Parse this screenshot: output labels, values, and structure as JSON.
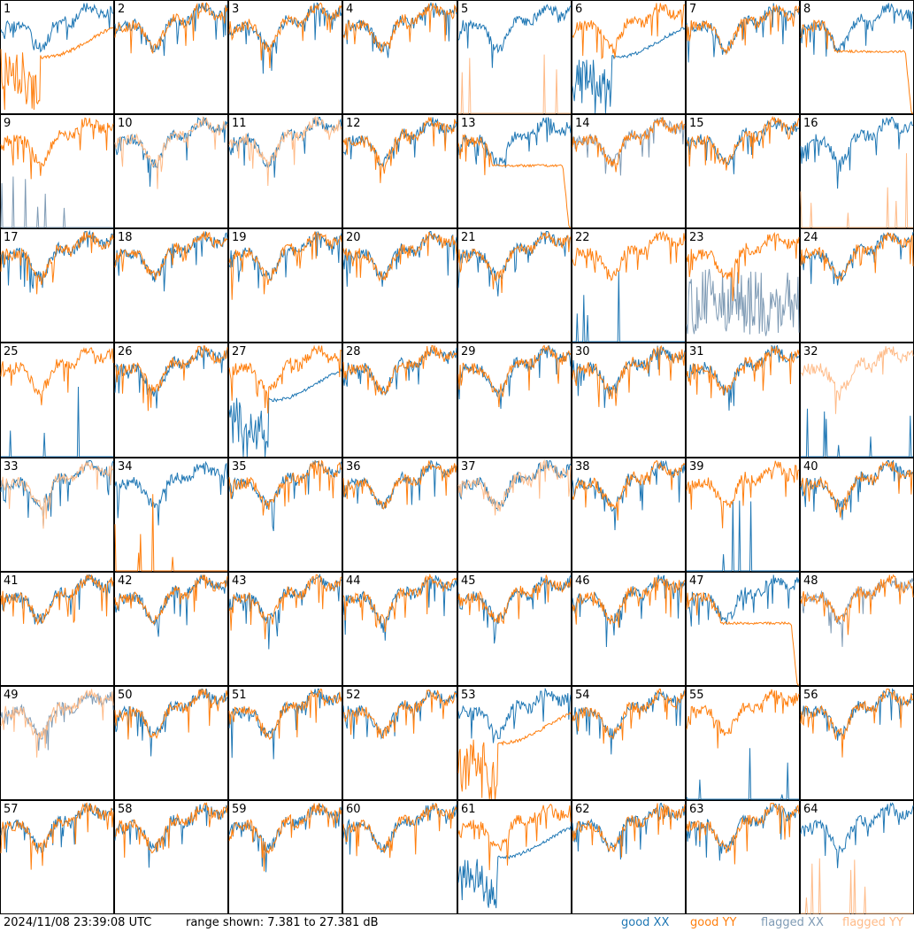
{
  "footer": {
    "timestamp": "2024/11/08 23:39:08 UTC",
    "range": "range shown: 7.381 to 27.381 dB",
    "legend": [
      {
        "prefix": "good ",
        "pol": "XX",
        "color": "#1f77b4"
      },
      {
        "prefix": "good ",
        "pol": "YY",
        "color": "#ff7f0e"
      },
      {
        "prefix": "flagged ",
        "pol": "XX",
        "color": "#7f9bb5"
      },
      {
        "prefix": "flagged ",
        "pol": "YY",
        "color": "#ffbb88"
      }
    ]
  },
  "chart_data": {
    "type": "line",
    "layout": "8x8 small multiples of antenna spectra",
    "ylim": [
      7.381,
      27.381
    ],
    "yunit": "dB",
    "series_colors": {
      "good_XX": "#1f77b4",
      "good_YY": "#ff7f0e",
      "flagged_XX": "#7f9bb5",
      "flagged_YY": "#ffbb88"
    },
    "panels": [
      {
        "id": "1",
        "XX": "good",
        "YY": "good",
        "xxShape": "normal",
        "yyShape": "dip"
      },
      {
        "id": "2",
        "XX": "good",
        "YY": "good",
        "xxShape": "normal",
        "yyShape": "normal"
      },
      {
        "id": "3",
        "XX": "good",
        "YY": "good",
        "xxShape": "normal",
        "yyShape": "normal"
      },
      {
        "id": "4",
        "XX": "good",
        "YY": "good",
        "xxShape": "normal",
        "yyShape": "normal"
      },
      {
        "id": "5",
        "XX": "good",
        "YY": "flagged",
        "xxShape": "normal",
        "yyShape": "spikes"
      },
      {
        "id": "6",
        "XX": "good",
        "YY": "good",
        "xxShape": "dip",
        "yyShape": "normal"
      },
      {
        "id": "7",
        "XX": "good",
        "YY": "good",
        "xxShape": "normal",
        "yyShape": "normal"
      },
      {
        "id": "8",
        "XX": "good",
        "YY": "good",
        "xxShape": "normal",
        "yyShape": "flat"
      },
      {
        "id": "9",
        "XX": "flagged",
        "YY": "good",
        "xxShape": "spikes",
        "yyShape": "normal"
      },
      {
        "id": "10",
        "XX": "good",
        "YY": "flagged",
        "xxShape": "normal",
        "yyShape": "normal"
      },
      {
        "id": "11",
        "XX": "good",
        "YY": "flagged",
        "xxShape": "normal",
        "yyShape": "normal"
      },
      {
        "id": "12",
        "XX": "good",
        "YY": "good",
        "xxShape": "normal",
        "yyShape": "normal"
      },
      {
        "id": "13",
        "XX": "good",
        "YY": "good",
        "xxShape": "normal",
        "yyShape": "flat"
      },
      {
        "id": "14",
        "XX": "flagged",
        "YY": "good",
        "xxShape": "normal",
        "yyShape": "normal"
      },
      {
        "id": "15",
        "XX": "good",
        "YY": "good",
        "xxShape": "normal",
        "yyShape": "normal"
      },
      {
        "id": "16",
        "XX": "good",
        "YY": "flagged",
        "xxShape": "normal",
        "yyShape": "spikes"
      },
      {
        "id": "17",
        "XX": "good",
        "YY": "good",
        "xxShape": "normal",
        "yyShape": "normal"
      },
      {
        "id": "18",
        "XX": "good",
        "YY": "good",
        "xxShape": "normal",
        "yyShape": "normal"
      },
      {
        "id": "19",
        "XX": "good",
        "YY": "good",
        "xxShape": "normal",
        "yyShape": "normal"
      },
      {
        "id": "20",
        "XX": "good",
        "YY": "good",
        "xxShape": "normal",
        "yyShape": "normal"
      },
      {
        "id": "21",
        "XX": "good",
        "YY": "good",
        "xxShape": "normal",
        "yyShape": "normal"
      },
      {
        "id": "22",
        "XX": "good",
        "YY": "good",
        "xxShape": "spikes",
        "yyShape": "normal"
      },
      {
        "id": "23",
        "XX": "flagged",
        "YY": "good",
        "xxShape": "noise",
        "yyShape": "normal"
      },
      {
        "id": "24",
        "XX": "good",
        "YY": "good",
        "xxShape": "normal",
        "yyShape": "normal"
      },
      {
        "id": "25",
        "XX": "good",
        "YY": "good",
        "xxShape": "spikes",
        "yyShape": "normal"
      },
      {
        "id": "26",
        "XX": "good",
        "YY": "good",
        "xxShape": "normal",
        "yyShape": "normal"
      },
      {
        "id": "27",
        "XX": "good",
        "YY": "good",
        "xxShape": "dip",
        "yyShape": "normal"
      },
      {
        "id": "28",
        "XX": "good",
        "YY": "good",
        "xxShape": "normal",
        "yyShape": "normal"
      },
      {
        "id": "29",
        "XX": "good",
        "YY": "good",
        "xxShape": "normal",
        "yyShape": "normal"
      },
      {
        "id": "30",
        "XX": "good",
        "YY": "good",
        "xxShape": "normal",
        "yyShape": "normal"
      },
      {
        "id": "31",
        "XX": "good",
        "YY": "good",
        "xxShape": "normal",
        "yyShape": "normal"
      },
      {
        "id": "32",
        "XX": "good",
        "YY": "flagged",
        "xxShape": "spikes",
        "yyShape": "normal"
      },
      {
        "id": "33",
        "XX": "good",
        "YY": "flagged",
        "xxShape": "normal",
        "yyShape": "normal"
      },
      {
        "id": "34",
        "XX": "good",
        "YY": "good",
        "xxShape": "normal",
        "yyShape": "spikes"
      },
      {
        "id": "35",
        "XX": "good",
        "YY": "good",
        "xxShape": "normal",
        "yyShape": "normal"
      },
      {
        "id": "36",
        "XX": "good",
        "YY": "good",
        "xxShape": "normal",
        "yyShape": "normal"
      },
      {
        "id": "37",
        "XX": "good",
        "YY": "flagged",
        "xxShape": "normal",
        "yyShape": "normal"
      },
      {
        "id": "38",
        "XX": "good",
        "YY": "good",
        "xxShape": "normal",
        "yyShape": "normal"
      },
      {
        "id": "39",
        "XX": "good",
        "YY": "good",
        "xxShape": "spikes",
        "yyShape": "normal"
      },
      {
        "id": "40",
        "XX": "good",
        "YY": "good",
        "xxShape": "normal",
        "yyShape": "normal"
      },
      {
        "id": "41",
        "XX": "good",
        "YY": "good",
        "xxShape": "normal",
        "yyShape": "normal"
      },
      {
        "id": "42",
        "XX": "good",
        "YY": "good",
        "xxShape": "normal",
        "yyShape": "normal"
      },
      {
        "id": "43",
        "XX": "good",
        "YY": "good",
        "xxShape": "normal",
        "yyShape": "normal"
      },
      {
        "id": "44",
        "XX": "good",
        "YY": "good",
        "xxShape": "normal",
        "yyShape": "normal"
      },
      {
        "id": "45",
        "XX": "good",
        "YY": "good",
        "xxShape": "normal",
        "yyShape": "normal"
      },
      {
        "id": "46",
        "XX": "good",
        "YY": "good",
        "xxShape": "normal",
        "yyShape": "normal"
      },
      {
        "id": "47",
        "XX": "good",
        "YY": "good",
        "xxShape": "normal",
        "yyShape": "flat"
      },
      {
        "id": "48",
        "XX": "flagged",
        "YY": "good",
        "xxShape": "normal",
        "yyShape": "normal"
      },
      {
        "id": "49",
        "XX": "flagged",
        "YY": "flagged",
        "xxShape": "normal",
        "yyShape": "normal"
      },
      {
        "id": "50",
        "XX": "good",
        "YY": "good",
        "xxShape": "normal",
        "yyShape": "normal"
      },
      {
        "id": "51",
        "XX": "good",
        "YY": "good",
        "xxShape": "normal",
        "yyShape": "normal"
      },
      {
        "id": "52",
        "XX": "good",
        "YY": "good",
        "xxShape": "normal",
        "yyShape": "normal"
      },
      {
        "id": "53",
        "XX": "good",
        "YY": "good",
        "xxShape": "normal",
        "yyShape": "dip"
      },
      {
        "id": "54",
        "XX": "good",
        "YY": "good",
        "xxShape": "normal",
        "yyShape": "normal"
      },
      {
        "id": "55",
        "XX": "good",
        "YY": "good",
        "xxShape": "spikes",
        "yyShape": "normal"
      },
      {
        "id": "56",
        "XX": "good",
        "YY": "good",
        "xxShape": "normal",
        "yyShape": "normal"
      },
      {
        "id": "57",
        "XX": "good",
        "YY": "good",
        "xxShape": "normal",
        "yyShape": "normal"
      },
      {
        "id": "58",
        "XX": "good",
        "YY": "good",
        "xxShape": "normal",
        "yyShape": "normal"
      },
      {
        "id": "59",
        "XX": "good",
        "YY": "good",
        "xxShape": "normal",
        "yyShape": "normal"
      },
      {
        "id": "60",
        "XX": "good",
        "YY": "good",
        "xxShape": "normal",
        "yyShape": "normal"
      },
      {
        "id": "61",
        "XX": "good",
        "YY": "good",
        "xxShape": "dip",
        "yyShape": "normal"
      },
      {
        "id": "62",
        "XX": "good",
        "YY": "good",
        "xxShape": "normal",
        "yyShape": "normal"
      },
      {
        "id": "63",
        "XX": "good",
        "YY": "good",
        "xxShape": "normal",
        "yyShape": "normal"
      },
      {
        "id": "64",
        "XX": "good",
        "YY": "flagged",
        "xxShape": "normal",
        "yyShape": "spikes"
      }
    ]
  }
}
